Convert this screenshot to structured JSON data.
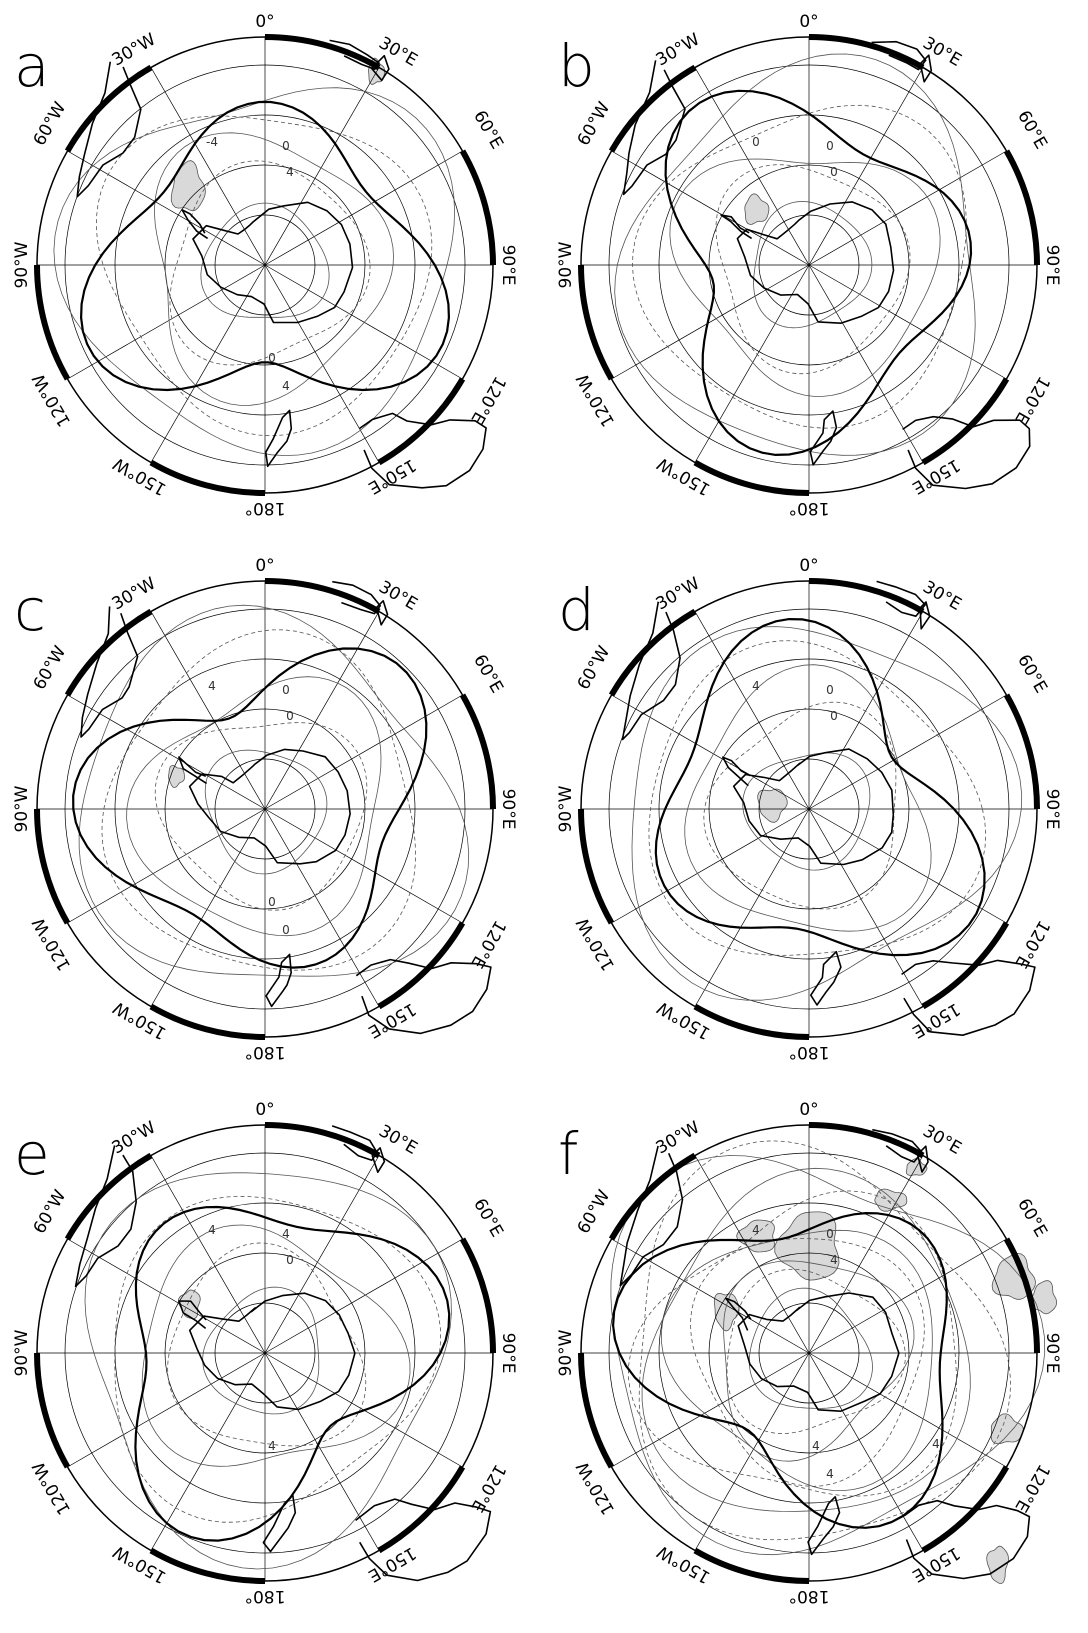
{
  "figure": {
    "panels": [
      {
        "label": "a",
        "contour_labels": [
          "-4",
          "0",
          "4",
          "0",
          "4"
        ]
      },
      {
        "label": "b",
        "contour_labels": [
          "0",
          "0",
          "0"
        ]
      },
      {
        "label": "c",
        "contour_labels": [
          "4",
          "0",
          "0",
          "0",
          "0"
        ]
      },
      {
        "label": "d",
        "contour_labels": [
          "4",
          "0",
          "0"
        ]
      },
      {
        "label": "e",
        "contour_labels": [
          "4",
          "4",
          "0",
          "4"
        ]
      },
      {
        "label": "f",
        "contour_labels": [
          "4",
          "0",
          "4",
          "4",
          "4",
          "4"
        ]
      }
    ],
    "longitude_labels": [
      "0°",
      "30°E",
      "60°E",
      "90°E",
      "120°E",
      "150°E",
      "180°",
      "150°W",
      "120°W",
      "90°W",
      "60°W",
      "30°W"
    ],
    "colors": {
      "coast": "#000000",
      "contour": "#555555",
      "shading": "#d9d9d9"
    }
  }
}
